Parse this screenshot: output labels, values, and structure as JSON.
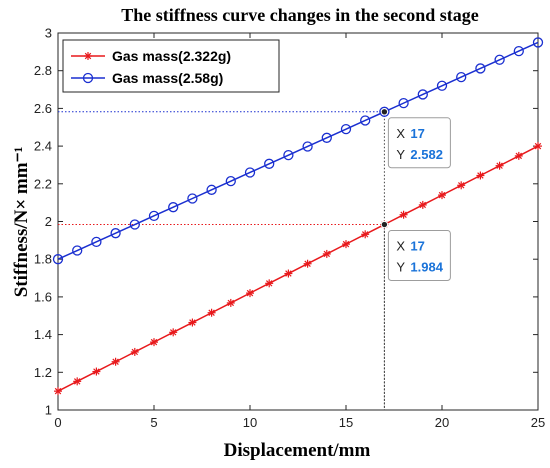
{
  "chart_data": {
    "type": "line",
    "title": "The stiffness curve changes in the second stage",
    "xlabel": "Displacement/mm",
    "ylabel": "Stiffness/N× mm⁻¹",
    "xlim": [
      0,
      25
    ],
    "ylim": [
      1,
      3
    ],
    "xticks": [
      0,
      5,
      10,
      15,
      20,
      25
    ],
    "yticks": [
      1,
      1.2,
      1.4,
      1.6,
      1.8,
      2,
      2.2,
      2.4,
      2.6,
      2.8,
      3
    ],
    "grid": false,
    "legend_position": "top-left",
    "x": [
      0,
      1,
      2,
      3,
      4,
      5,
      6,
      7,
      8,
      9,
      10,
      11,
      12,
      13,
      14,
      15,
      16,
      17,
      18,
      19,
      20,
      21,
      22,
      23,
      24,
      25
    ],
    "series": [
      {
        "name": "Gas mass(2.322g)",
        "color": "#e8191c",
        "marker": "asterisk",
        "values": [
          1.1,
          1.152,
          1.204,
          1.256,
          1.308,
          1.36,
          1.412,
          1.464,
          1.516,
          1.568,
          1.62,
          1.672,
          1.724,
          1.776,
          1.828,
          1.88,
          1.932,
          1.984,
          2.036,
          2.088,
          2.14,
          2.192,
          2.244,
          2.296,
          2.348,
          2.4
        ]
      },
      {
        "name": "Gas mass(2.58g)",
        "color": "#1a2fd0",
        "marker": "circle",
        "values": [
          1.8,
          1.846,
          1.892,
          1.938,
          1.984,
          2.03,
          2.076,
          2.122,
          2.168,
          2.214,
          2.26,
          2.306,
          2.352,
          2.398,
          2.444,
          2.49,
          2.536,
          2.582,
          2.628,
          2.674,
          2.72,
          2.766,
          2.812,
          2.858,
          2.904,
          2.95
        ]
      }
    ],
    "annotations": [
      {
        "x_label": "X",
        "x_value": "17",
        "y_label": "Y",
        "y_value": "2.582",
        "x": 17,
        "y": 2.582,
        "series": "Gas mass(2.58g)"
      },
      {
        "x_label": "X",
        "x_value": "17",
        "y_label": "Y",
        "y_value": "1.984",
        "x": 17,
        "y": 1.984,
        "series": "Gas mass(2.322g)"
      }
    ]
  }
}
